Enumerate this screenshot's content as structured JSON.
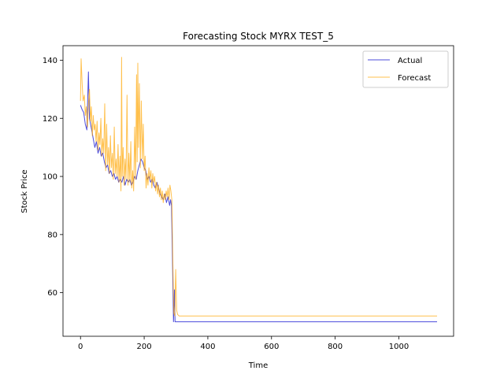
{
  "chart_data": {
    "type": "line",
    "title": "Forecasting Stock MYRX TEST_5",
    "xlabel": "Time",
    "ylabel": "Stock Price",
    "xlim": [
      -55,
      1172
    ],
    "ylim": [
      45,
      145
    ],
    "xticks": [
      0,
      200,
      400,
      600,
      800,
      1000
    ],
    "yticks": [
      60,
      80,
      100,
      120,
      140
    ],
    "grid": false,
    "legend_position": "top-right",
    "series": [
      {
        "name": "Actual",
        "color": "#0000cc",
        "points": [
          [
            0,
            124.5
          ],
          [
            5,
            123
          ],
          [
            10,
            122
          ],
          [
            15,
            118
          ],
          [
            20,
            116
          ],
          [
            25,
            136
          ],
          [
            28,
            120
          ],
          [
            35,
            116
          ],
          [
            40,
            113
          ],
          [
            45,
            110
          ],
          [
            50,
            112
          ],
          [
            55,
            108
          ],
          [
            60,
            110
          ],
          [
            65,
            107
          ],
          [
            70,
            108
          ],
          [
            75,
            105
          ],
          [
            80,
            103
          ],
          [
            85,
            104
          ],
          [
            90,
            101
          ],
          [
            95,
            102
          ],
          [
            100,
            100
          ],
          [
            105,
            101
          ],
          [
            110,
            99
          ],
          [
            115,
            100
          ],
          [
            120,
            98
          ],
          [
            125,
            99
          ],
          [
            130,
            98
          ],
          [
            135,
            100
          ],
          [
            140,
            97
          ],
          [
            145,
            99
          ],
          [
            150,
            98
          ],
          [
            155,
            99
          ],
          [
            160,
            97
          ],
          [
            165,
            98
          ],
          [
            170,
            100
          ],
          [
            175,
            99
          ],
          [
            180,
            102
          ],
          [
            185,
            104
          ],
          [
            190,
            106
          ],
          [
            195,
            105
          ],
          [
            200,
            103
          ],
          [
            205,
            102
          ],
          [
            210,
            99
          ],
          [
            215,
            100
          ],
          [
            220,
            98
          ],
          [
            225,
            99
          ],
          [
            230,
            97
          ],
          [
            235,
            96
          ],
          [
            240,
            98
          ],
          [
            245,
            96
          ],
          [
            250,
            94
          ],
          [
            255,
            93
          ],
          [
            260,
            92
          ],
          [
            265,
            94
          ],
          [
            270,
            91
          ],
          [
            275,
            93
          ],
          [
            280,
            90
          ],
          [
            283,
            92
          ],
          [
            286,
            90
          ],
          [
            289,
            70
          ],
          [
            292,
            50
          ],
          [
            295,
            61
          ],
          [
            297,
            50
          ],
          [
            300,
            50
          ],
          [
            400,
            50
          ],
          [
            600,
            50
          ],
          [
            800,
            50
          ],
          [
            1000,
            50
          ],
          [
            1120,
            50
          ]
        ]
      },
      {
        "name": "Forecast",
        "color": "#ffa500",
        "points": [
          [
            0,
            126
          ],
          [
            2,
            140.5
          ],
          [
            5,
            132
          ],
          [
            8,
            126
          ],
          [
            12,
            128
          ],
          [
            15,
            121
          ],
          [
            18,
            124
          ],
          [
            22,
            117
          ],
          [
            25,
            125
          ],
          [
            28,
            130
          ],
          [
            31,
            119
          ],
          [
            34,
            124
          ],
          [
            37,
            114
          ],
          [
            40,
            121
          ],
          [
            43,
            116
          ],
          [
            46,
            118
          ],
          [
            49,
            112
          ],
          [
            52,
            119
          ],
          [
            55,
            109
          ],
          [
            58,
            115
          ],
          [
            61,
            111
          ],
          [
            64,
            120
          ],
          [
            67,
            107
          ],
          [
            70,
            113
          ],
          [
            73,
            108
          ],
          [
            76,
            125
          ],
          [
            79,
            102
          ],
          [
            82,
            118
          ],
          [
            85,
            104
          ],
          [
            88,
            110
          ],
          [
            91,
            101
          ],
          [
            94,
            114
          ],
          [
            97,
            103
          ],
          [
            100,
            108
          ],
          [
            103,
            99
          ],
          [
            106,
            117
          ],
          [
            109,
            101
          ],
          [
            112,
            106
          ],
          [
            115,
            100
          ],
          [
            118,
            111
          ],
          [
            121,
            98
          ],
          [
            124,
            107
          ],
          [
            127,
            95
          ],
          [
            129,
            141
          ],
          [
            131,
            100
          ],
          [
            134,
            110
          ],
          [
            137,
            97
          ],
          [
            140,
            106
          ],
          [
            143,
            99
          ],
          [
            146,
            128
          ],
          [
            149,
            97
          ],
          [
            152,
            108
          ],
          [
            155,
            98
          ],
          [
            158,
            112
          ],
          [
            161,
            96
          ],
          [
            164,
            102
          ],
          [
            167,
            95
          ],
          [
            170,
            117
          ],
          [
            173,
            99
          ],
          [
            176,
            135
          ],
          [
            178,
            105
          ],
          [
            180,
            139
          ],
          [
            182,
            110
          ],
          [
            185,
            132
          ],
          [
            188,
            103
          ],
          [
            191,
            126
          ],
          [
            194,
            106
          ],
          [
            197,
            118
          ],
          [
            200,
            102
          ],
          [
            203,
            107
          ],
          [
            206,
            96
          ],
          [
            209,
            101
          ],
          [
            212,
            97
          ],
          [
            215,
            103
          ],
          [
            218,
            99
          ],
          [
            221,
            102
          ],
          [
            224,
            96
          ],
          [
            227,
            101
          ],
          [
            230,
            98
          ],
          [
            233,
            100
          ],
          [
            236,
            95
          ],
          [
            239,
            98
          ],
          [
            242,
            94
          ],
          [
            245,
            97
          ],
          [
            248,
            93
          ],
          [
            251,
            96
          ],
          [
            254,
            92
          ],
          [
            257,
            95
          ],
          [
            260,
            91
          ],
          [
            263,
            94
          ],
          [
            266,
            92
          ],
          [
            269,
            95
          ],
          [
            272,
            93
          ],
          [
            275,
            96
          ],
          [
            278,
            92
          ],
          [
            281,
            97
          ],
          [
            284,
            95
          ],
          [
            287,
            92
          ],
          [
            290,
            70
          ],
          [
            293,
            53
          ],
          [
            296,
            52
          ],
          [
            299,
            68
          ],
          [
            302,
            54
          ],
          [
            305,
            52.5
          ],
          [
            310,
            52
          ],
          [
            400,
            52
          ],
          [
            600,
            52
          ],
          [
            800,
            52
          ],
          [
            1000,
            52
          ],
          [
            1120,
            52
          ]
        ]
      }
    ]
  }
}
